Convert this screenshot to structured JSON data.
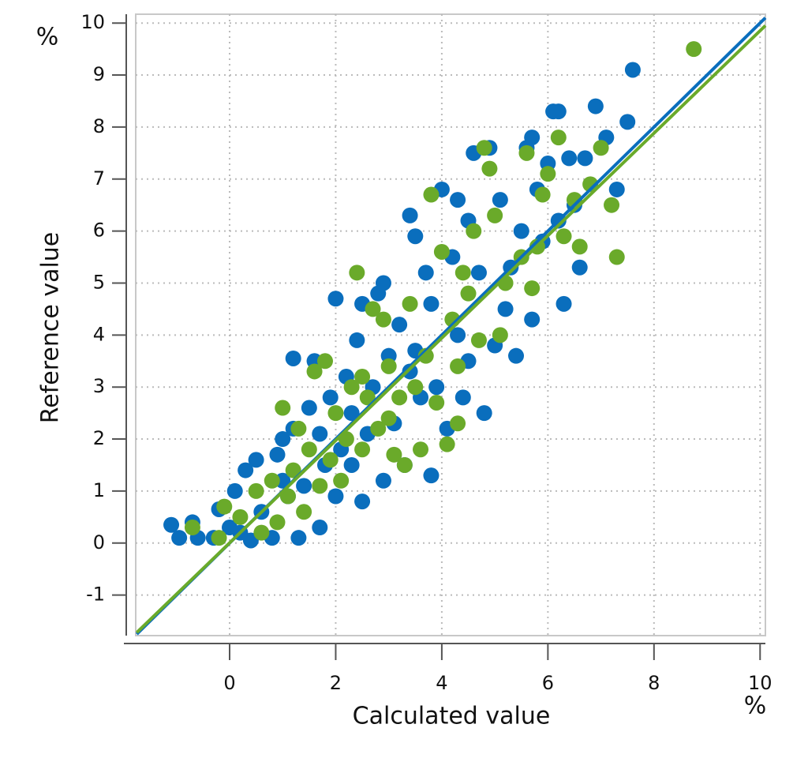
{
  "chart_data": {
    "type": "scatter",
    "x_label": "Calculated value",
    "y_label": "Reference value",
    "x_unit": "%",
    "y_unit": "%",
    "xlim": [
      -1.77,
      10.1
    ],
    "ylim": [
      -1.78,
      10.17
    ],
    "xticks": [
      0,
      2,
      4,
      6,
      8,
      10
    ],
    "yticks": [
      -1,
      0,
      1,
      2,
      3,
      4,
      5,
      6,
      7,
      8,
      9,
      10
    ],
    "grid": true,
    "series": [
      {
        "color": "#0a6ebd",
        "x": [
          -1.1,
          -0.95,
          -0.7,
          -0.6,
          -0.3,
          -0.2,
          0.1,
          0.2,
          0.3,
          0.5,
          0.6,
          0.8,
          0.9,
          1.0,
          1.1,
          1.2,
          1.2,
          1.3,
          1.4,
          1.5,
          1.6,
          1.7,
          1.8,
          1.9,
          2.0,
          2.0,
          2.1,
          2.2,
          2.3,
          2.4,
          2.5,
          2.5,
          2.6,
          2.7,
          2.8,
          2.9,
          2.9,
          3.0,
          3.1,
          3.2,
          3.3,
          3.4,
          3.5,
          3.6,
          3.7,
          3.8,
          3.8,
          3.9,
          4.0,
          4.1,
          4.2,
          4.3,
          4.4,
          4.5,
          4.5,
          4.6,
          4.7,
          4.8,
          4.9,
          5.0,
          5.1,
          5.2,
          5.3,
          5.4,
          5.5,
          5.6,
          5.7,
          5.8,
          5.9,
          6.0,
          6.1,
          6.2,
          6.3,
          6.4,
          6.5,
          6.6,
          6.7,
          6.9,
          7.1,
          7.3,
          7.5,
          7.6,
          5.7,
          6.2,
          4.3,
          3.4,
          0.0,
          0.4,
          1.0,
          1.7,
          2.3,
          3.5
        ],
        "values": [
          0.35,
          0.1,
          0.4,
          0.1,
          0.1,
          0.65,
          1.0,
          0.2,
          1.4,
          1.6,
          0.6,
          0.1,
          1.7,
          2.0,
          0.9,
          2.2,
          3.55,
          0.1,
          1.1,
          2.6,
          3.5,
          0.3,
          1.5,
          2.8,
          4.7,
          0.9,
          1.8,
          3.2,
          2.5,
          3.9,
          4.6,
          0.8,
          2.1,
          3.0,
          4.8,
          1.2,
          5.0,
          3.6,
          2.3,
          4.2,
          1.5,
          3.3,
          5.9,
          2.8,
          5.2,
          1.3,
          4.6,
          3.0,
          6.8,
          2.2,
          5.5,
          4.0,
          2.8,
          6.2,
          3.5,
          7.5,
          5.2,
          2.5,
          7.6,
          3.8,
          6.6,
          4.5,
          5.3,
          3.6,
          6.0,
          7.6,
          4.3,
          6.8,
          5.8,
          7.3,
          8.3,
          6.2,
          4.6,
          7.4,
          6.5,
          5.3,
          7.4,
          8.4,
          7.8,
          6.8,
          8.1,
          9.1,
          7.8,
          8.3,
          6.6,
          6.3,
          0.3,
          0.05,
          1.2,
          2.1,
          1.5,
          3.7
        ]
      },
      {
        "color": "#6aaa2a",
        "x": [
          -0.7,
          -0.2,
          -0.1,
          0.2,
          0.5,
          0.6,
          0.8,
          0.9,
          1.0,
          1.1,
          1.2,
          1.3,
          1.4,
          1.5,
          1.6,
          1.7,
          1.8,
          1.9,
          2.0,
          2.1,
          2.2,
          2.3,
          2.4,
          2.5,
          2.6,
          2.7,
          2.8,
          2.9,
          3.0,
          3.1,
          3.2,
          3.3,
          3.4,
          3.5,
          3.6,
          3.7,
          3.8,
          3.9,
          4.0,
          4.1,
          4.2,
          4.3,
          4.4,
          4.5,
          4.6,
          4.7,
          4.8,
          4.9,
          5.0,
          5.1,
          5.2,
          5.5,
          5.6,
          5.7,
          5.8,
          5.9,
          6.0,
          6.2,
          6.3,
          6.5,
          6.6,
          6.8,
          7.0,
          7.2,
          7.3,
          8.75,
          2.5,
          3.0,
          4.3
        ],
        "values": [
          0.3,
          0.1,
          0.7,
          0.5,
          1.0,
          0.2,
          1.2,
          0.4,
          2.6,
          0.9,
          1.4,
          2.2,
          0.6,
          1.8,
          3.3,
          1.1,
          3.5,
          1.6,
          2.5,
          1.2,
          2.0,
          3.0,
          5.2,
          1.8,
          2.8,
          4.5,
          2.2,
          4.3,
          3.4,
          1.7,
          2.8,
          1.5,
          4.6,
          3.0,
          1.8,
          3.6,
          6.7,
          2.7,
          5.6,
          1.9,
          4.3,
          3.4,
          5.2,
          4.8,
          6.0,
          3.9,
          7.6,
          7.2,
          6.3,
          4.0,
          5.0,
          5.5,
          7.5,
          4.9,
          5.7,
          6.7,
          7.1,
          7.8,
          5.9,
          6.6,
          5.7,
          6.9,
          7.6,
          6.5,
          5.5,
          9.5,
          3.2,
          2.4,
          2.3
        ]
      }
    ],
    "fit_lines": [
      {
        "color": "#0a6ebd",
        "x": [
          -1.75,
          10.1
        ],
        "values": [
          -1.75,
          10.1
        ]
      },
      {
        "color": "#6aaa2a",
        "x": [
          -1.75,
          10.1
        ],
        "values": [
          -1.72,
          9.95
        ]
      }
    ]
  }
}
